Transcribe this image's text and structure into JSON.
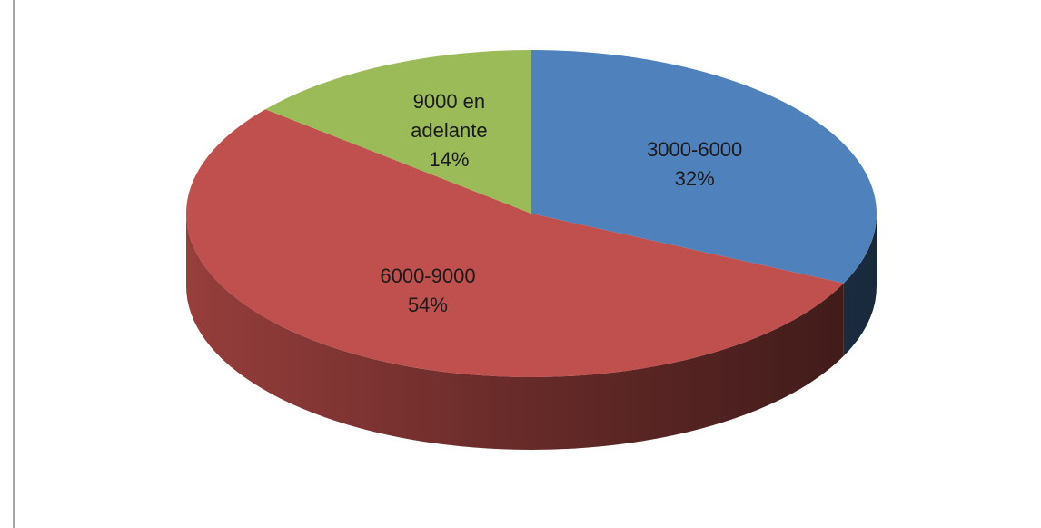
{
  "chart_data": {
    "type": "pie",
    "style": "3d",
    "title": "",
    "slices": [
      {
        "name_lines": [
          "3000-6000"
        ],
        "value": 32,
        "label": "32%",
        "color": "#4f81bd"
      },
      {
        "name_lines": [
          "6000-9000"
        ],
        "value": 54,
        "label": "54%",
        "color": "#c0504d"
      },
      {
        "name_lines": [
          "9000 en",
          "adelante"
        ],
        "value": 14,
        "label": "14%",
        "color": "#9bbb59"
      }
    ]
  }
}
